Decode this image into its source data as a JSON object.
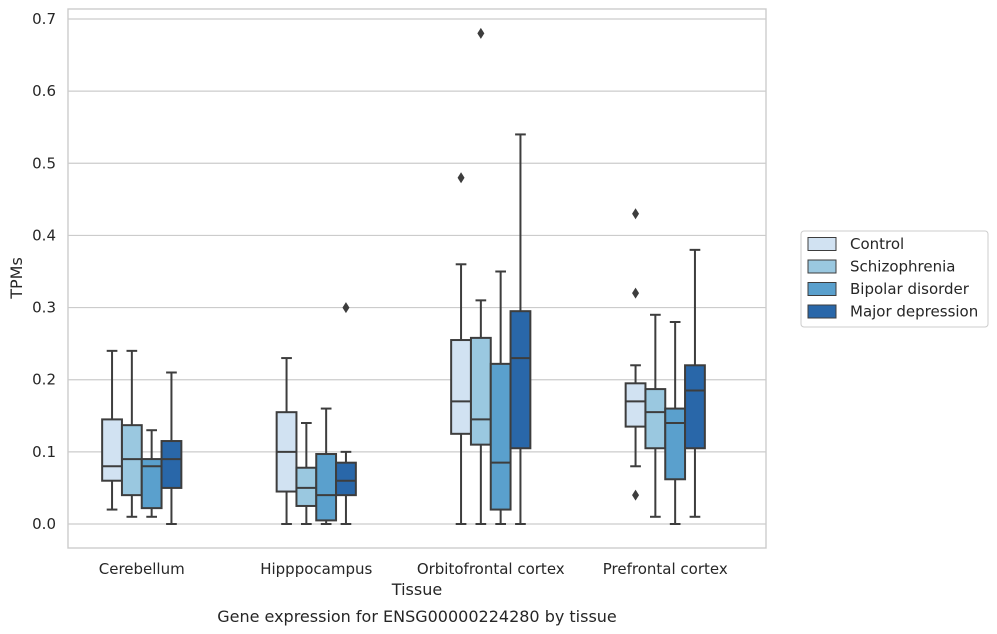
{
  "chart_data": {
    "type": "boxplot",
    "title": "",
    "caption": "Gene expression for ENSG00000224280 by tissue",
    "xlabel": "Tissue",
    "ylabel": "TPMs",
    "ylim": [
      -0.033,
      0.715
    ],
    "yticks": [
      "0.0",
      "0.1",
      "0.2",
      "0.3",
      "0.4",
      "0.5",
      "0.6",
      "0.7"
    ],
    "grid": "horizontal",
    "legend_position": "right",
    "categories": [
      "Cerebellum",
      "Hipppocampus",
      "Orbitofrontal cortex",
      "Prefrontal cortex"
    ],
    "series": [
      {
        "name": "Control",
        "color": "#d1e2f2",
        "boxes": [
          {
            "whislo": 0.02,
            "q1": 0.06,
            "med": 0.08,
            "q3": 0.145,
            "whishi": 0.24,
            "fliers": []
          },
          {
            "whislo": 0.0,
            "q1": 0.045,
            "med": 0.1,
            "q3": 0.155,
            "whishi": 0.23,
            "fliers": []
          },
          {
            "whislo": 0.0,
            "q1": 0.125,
            "med": 0.17,
            "q3": 0.255,
            "whishi": 0.36,
            "fliers": [
              0.48
            ]
          },
          {
            "whislo": 0.08,
            "q1": 0.135,
            "med": 0.17,
            "q3": 0.195,
            "whishi": 0.22,
            "fliers": [
              0.43,
              0.32,
              0.04
            ]
          }
        ]
      },
      {
        "name": "Schizophrenia",
        "color": "#9ac8e0",
        "boxes": [
          {
            "whislo": 0.01,
            "q1": 0.04,
            "med": 0.09,
            "q3": 0.137,
            "whishi": 0.24,
            "fliers": []
          },
          {
            "whislo": 0.0,
            "q1": 0.025,
            "med": 0.05,
            "q3": 0.078,
            "whishi": 0.14,
            "fliers": []
          },
          {
            "whislo": 0.0,
            "q1": 0.11,
            "med": 0.145,
            "q3": 0.258,
            "whishi": 0.31,
            "fliers": [
              0.68
            ]
          },
          {
            "whislo": 0.01,
            "q1": 0.105,
            "med": 0.155,
            "q3": 0.187,
            "whishi": 0.29,
            "fliers": []
          }
        ]
      },
      {
        "name": "Bipolar disorder",
        "color": "#5aa0cd",
        "boxes": [
          {
            "whislo": 0.01,
            "q1": 0.022,
            "med": 0.08,
            "q3": 0.09,
            "whishi": 0.13,
            "fliers": []
          },
          {
            "whislo": 0.0,
            "q1": 0.005,
            "med": 0.04,
            "q3": 0.097,
            "whishi": 0.16,
            "fliers": []
          },
          {
            "whislo": 0.0,
            "q1": 0.02,
            "med": 0.085,
            "q3": 0.222,
            "whishi": 0.35,
            "fliers": []
          },
          {
            "whislo": 0.0,
            "q1": 0.062,
            "med": 0.14,
            "q3": 0.16,
            "whishi": 0.28,
            "fliers": []
          }
        ]
      },
      {
        "name": "Major depression",
        "color": "#2967a9",
        "boxes": [
          {
            "whislo": 0.0,
            "q1": 0.05,
            "med": 0.09,
            "q3": 0.115,
            "whishi": 0.21,
            "fliers": []
          },
          {
            "whislo": 0.0,
            "q1": 0.04,
            "med": 0.06,
            "q3": 0.085,
            "whishi": 0.1,
            "fliers": [
              0.3
            ]
          },
          {
            "whislo": 0.0,
            "q1": 0.105,
            "med": 0.23,
            "q3": 0.295,
            "whishi": 0.54,
            "fliers": []
          },
          {
            "whislo": 0.01,
            "q1": 0.105,
            "med": 0.185,
            "q3": 0.22,
            "whishi": 0.38,
            "fliers": []
          }
        ]
      }
    ]
  },
  "style": {
    "grid_color": "#cccccc",
    "frame_color": "#cccccc",
    "line_color": "#3d3d3d",
    "text_color": "#262626"
  }
}
